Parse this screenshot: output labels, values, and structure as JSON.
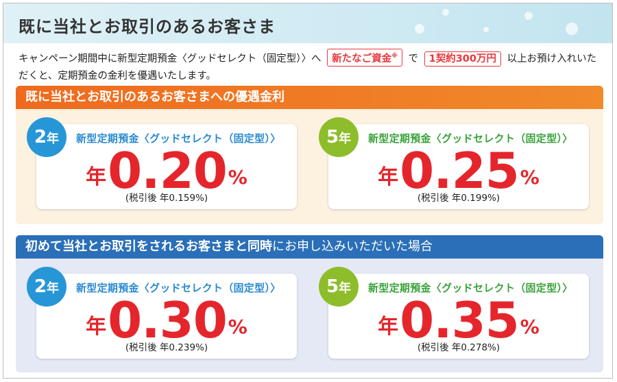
{
  "header": {
    "title": "既に当社とお取引のあるお客さま"
  },
  "intro": {
    "before": "キャンペーン期間中に新型定期預金〈グッドセレクト（固定型）〉へ",
    "tag1": "新たなご資金",
    "tag1_mark": "※",
    "between": "で",
    "tag2": "1契約300万円",
    "after": "以上お預け入れいただくと、定期預金の金利を優遇いたします。"
  },
  "sections": [
    {
      "heading": "既に当社とお取引のあるお客さまへの優遇金利",
      "heading_suffix": "",
      "cards": [
        {
          "term_num": "2",
          "term_unit": "年",
          "product": "新型定期預金〈グッドセレクト（固定型）〉",
          "rate_prefix": "年",
          "rate": "0.20",
          "rate_unit": "%",
          "after_tax": "(税引後 年0.159%)"
        },
        {
          "term_num": "5",
          "term_unit": "年",
          "product": "新型定期預金〈グッドセレクト（固定型）〉",
          "rate_prefix": "年",
          "rate": "0.25",
          "rate_unit": "%",
          "after_tax": "(税引後 年0.199%)"
        }
      ]
    },
    {
      "heading": "初めて当社とお取引をされるお客さまと同時",
      "heading_suffix": "にお申し込みいただいた場合",
      "cards": [
        {
          "term_num": "2",
          "term_unit": "年",
          "product": "新型定期預金〈グッドセレクト（固定型）〉",
          "rate_prefix": "年",
          "rate": "0.30",
          "rate_unit": "%",
          "after_tax": "(税引後 年0.239%)"
        },
        {
          "term_num": "5",
          "term_unit": "年",
          "product": "新型定期預金〈グッドセレクト（固定型）〉",
          "rate_prefix": "年",
          "rate": "0.35",
          "rate_unit": "%",
          "after_tax": "(税引後 年0.278%)"
        }
      ]
    }
  ],
  "colors": {
    "accent_red": "#e4262c",
    "orange": "#ef6a1e",
    "blue_header": "#2a6fb8",
    "badge_2yr": "#2796d6",
    "badge_5yr": "#8dbd2b"
  }
}
